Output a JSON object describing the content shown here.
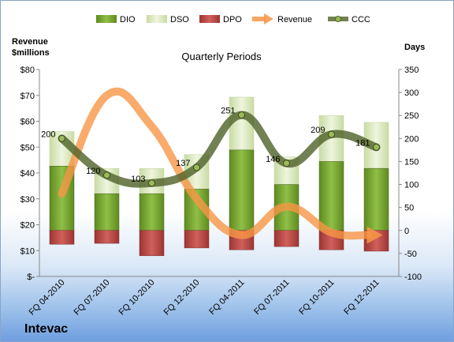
{
  "company": "Intevac",
  "chart_data": {
    "type": "bar",
    "title": "Quarterly Periods",
    "left_axis_title": [
      "Revenue",
      "$millions"
    ],
    "right_axis_title": "Days",
    "categories": [
      "FQ 04-2010",
      "FQ 07-2010",
      "FQ 10-2010",
      "FQ 12-2010",
      "FQ 04-2011",
      "FQ 07-2011",
      "FQ 10-2011",
      "FQ 12-2011"
    ],
    "left_axis": {
      "min": 0,
      "max": 80,
      "step": 10,
      "tick_labels": [
        "$-",
        "$10",
        "$20",
        "$30",
        "$40",
        "$50",
        "$60",
        "$70",
        "$80"
      ]
    },
    "right_axis": {
      "min": -100,
      "max": 350,
      "step": 50,
      "tick_labels": [
        "-100",
        "-50",
        "0",
        "50",
        "100",
        "150",
        "200",
        "250",
        "300",
        "350"
      ]
    },
    "series": [
      {
        "name": "DIO",
        "axis": "right",
        "kind": "stacked-bar",
        "color": "#77a033",
        "values": [
          140,
          80,
          80,
          90,
          175,
          100,
          150,
          135
        ]
      },
      {
        "name": "DSO",
        "axis": "right",
        "kind": "stacked-bar",
        "color": "#d7e4bd",
        "values": [
          75,
          55,
          55,
          75,
          115,
          60,
          100,
          100
        ]
      },
      {
        "name": "DPO",
        "axis": "right",
        "kind": "negative-bar",
        "color": "#c0504d",
        "values": [
          -30,
          -28,
          -55,
          -38,
          -42,
          -35,
          -42,
          -45
        ]
      },
      {
        "name": "Revenue",
        "axis": "left",
        "kind": "line",
        "color": "#f79646",
        "values": [
          32,
          70,
          58,
          30,
          16,
          27,
          17,
          16
        ]
      },
      {
        "name": "CCC",
        "axis": "right",
        "kind": "line",
        "color": "#4f6228",
        "values": [
          200,
          120,
          103,
          137,
          251,
          146,
          209,
          181
        ]
      }
    ],
    "ccc_labels": [
      "200",
      "120",
      "103",
      "137",
      "251",
      "146",
      "209",
      "181"
    ],
    "grid": false,
    "legend_position": "top"
  }
}
